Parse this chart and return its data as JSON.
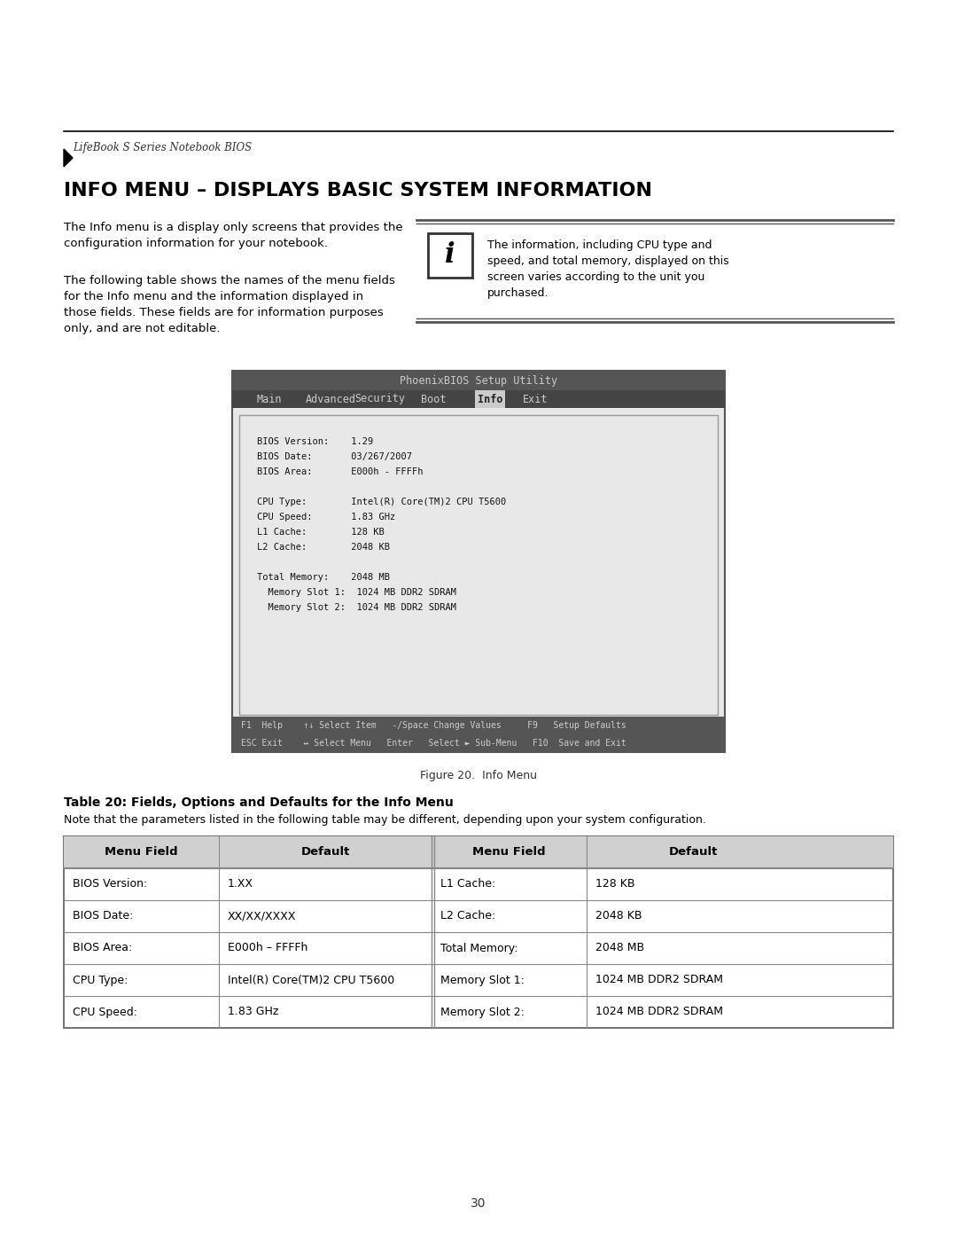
{
  "page_bg": "#ffffff",
  "header_text": "LifeBook S Series Notebook BIOS",
  "title": "INFO MENU – DISPLAYS BASIC SYSTEM INFORMATION",
  "para1": "The Info menu is a display only screens that provides the\nconfiguration information for your notebook.",
  "para2": "The following table shows the names of the menu fields\nfor the Info menu and the information displayed in\nthose fields. These fields are for information purposes\nonly, and are not editable.",
  "note_text": "The information, including CPU type and\nspeed, and total memory, displayed on this\nscreen varies according to the unit you\npurchased.",
  "bios_title": "PhoenixBIOS Setup Utility",
  "bios_menu": [
    "Main",
    "Advanced",
    "Security",
    "Boot",
    "Info",
    "Exit"
  ],
  "bios_active": "Info",
  "bios_content": [
    "BIOS Version:    1.29",
    "BIOS Date:       03/267/2007",
    "BIOS Area:       E000h - FFFFh",
    "",
    "CPU Type:        Intel(R) Core(TM)2 CPU T5600",
    "CPU Speed:       1.83 GHz",
    "L1 Cache:        128 KB",
    "L2 Cache:        2048 KB",
    "",
    "Total Memory:    2048 MB",
    "  Memory Slot 1:  1024 MB DDR2 SDRAM",
    "  Memory Slot 2:  1024 MB DDR2 SDRAM"
  ],
  "bios_footer": [
    "F1  Help    ↑↓ Select Item   -/Space Change Values     F9   Setup Defaults",
    "ESC Exit    ↔ Select Menu   Enter   Select ► Sub-Menu   F10  Save and Exit"
  ],
  "fig_caption": "Figure 20.  Info Menu",
  "table_title": "Table 20: Fields, Options and Defaults for the Info Menu",
  "table_note": "Note that the parameters listed in the following table may be different, depending upon your system configuration.",
  "table_header": [
    "Menu Field",
    "Default",
    "Menu Field",
    "Default"
  ],
  "table_rows": [
    [
      "BIOS Version:",
      "1.XX",
      "L1 Cache:",
      "128 KB"
    ],
    [
      "BIOS Date:",
      "XX/XX/XXXX",
      "L2 Cache:",
      "2048 KB"
    ],
    [
      "BIOS Area:",
      "E000h – FFFFh",
      "Total Memory:",
      "2048 MB"
    ],
    [
      "CPU Type:",
      "Intel(R) Core(TM)2 CPU T5600",
      "Memory Slot 1:",
      "1024 MB DDR2 SDRAM"
    ],
    [
      "CPU Speed:",
      "1.83 GHz",
      "Memory Slot 2:",
      "1024 MB DDR2 SDRAM"
    ]
  ],
  "page_number": "30",
  "header_color": "#555555",
  "bios_header_bg": "#555555",
  "bios_menu_bg": "#444444",
  "bios_active_bg": "#dddddd",
  "bios_content_bg": "#e8e8e8",
  "bios_footer_bg": "#555555",
  "table_header_bg": "#d8d8d8",
  "table_border_color": "#888888",
  "note_border_color": "#888888"
}
